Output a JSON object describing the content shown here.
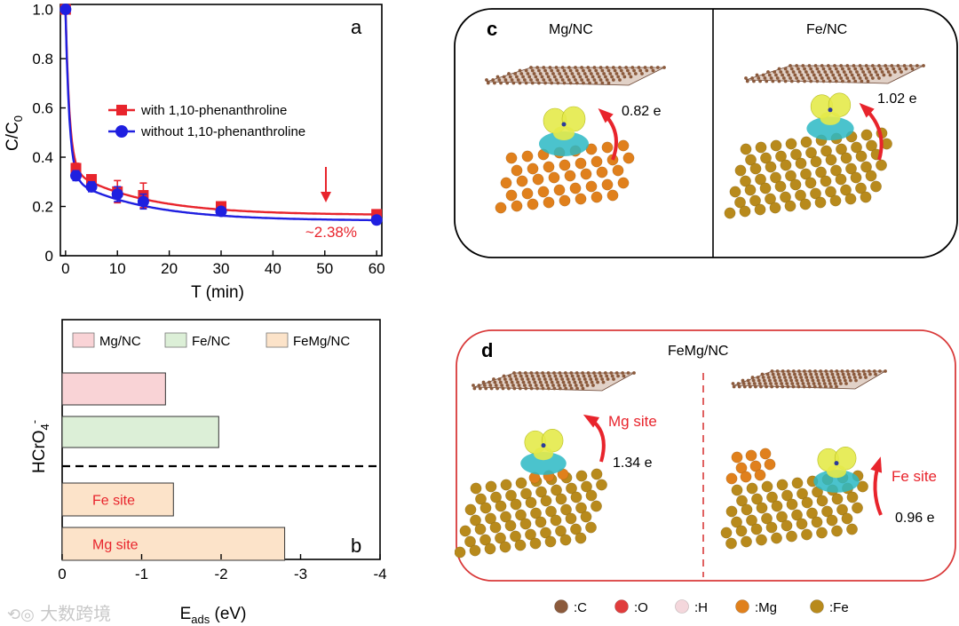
{
  "panel_a": {
    "label": "a",
    "annotation": "~2.38%",
    "chart_data": {
      "type": "line",
      "xlabel": "T (min)",
      "ylabel": "C/C0",
      "xlim": [
        -1,
        61
      ],
      "ylim": [
        0,
        1.02
      ],
      "xticks": [
        "0",
        "10",
        "20",
        "30",
        "40",
        "50",
        "60"
      ],
      "yticks": [
        "0",
        "0.2",
        "0.4",
        "0.6",
        "0.8",
        "1.0"
      ],
      "series": [
        {
          "name": "with 1,10-phenanthroline",
          "color": "#e8242c",
          "marker": "square",
          "x": [
            0,
            2,
            5,
            10,
            15,
            30,
            60
          ],
          "y": [
            1.0,
            0.355,
            0.31,
            0.26,
            0.245,
            0.2,
            0.168
          ],
          "err": [
            0,
            0.02,
            0.015,
            0.045,
            0.05,
            0.01,
            0.01
          ]
        },
        {
          "name": "without 1,10-phenanthroline",
          "color": "#1f1fe0",
          "marker": "circle",
          "x": [
            0,
            2,
            5,
            10,
            15,
            30,
            60
          ],
          "y": [
            1.0,
            0.325,
            0.28,
            0.25,
            0.22,
            0.18,
            0.145
          ],
          "err": [
            0,
            0.02,
            0.02,
            0.03,
            0.03,
            0.01,
            0.01
          ]
        }
      ],
      "legend": "center-right"
    }
  },
  "panel_b": {
    "label": "b",
    "ylabel": "HCrO4-",
    "chart_data": {
      "type": "bar",
      "orientation": "horizontal",
      "xlabel": "Eads (eV)",
      "xlim": [
        0,
        -4
      ],
      "xticks": [
        "0",
        "-1",
        "-2",
        "-3",
        "-4"
      ],
      "legend": [
        "Mg/NC",
        "Fe/NC",
        "FeMg/NC"
      ],
      "bars": [
        {
          "label": "",
          "group": "Mg/NC",
          "value": -1.3,
          "color": "#f9d3d6"
        },
        {
          "label": "",
          "group": "Fe/NC",
          "value": -1.97,
          "color": "#dcefd7"
        },
        {
          "label": "Fe site",
          "group": "FeMg/NC",
          "value": -1.4,
          "color": "#fce3c9"
        },
        {
          "label": "Mg site",
          "group": "FeMg/NC",
          "value": -2.8,
          "color": "#fce3c9"
        }
      ]
    }
  },
  "panel_c": {
    "label": "c",
    "left_title": "Mg/NC",
    "right_title": "Fe/NC",
    "left_charge": "0.82 e",
    "right_charge": "1.02 e"
  },
  "panel_d": {
    "label": "d",
    "title": "FeMg/NC",
    "left_site": "Mg site",
    "left_charge": "1.34 e",
    "right_site": "Fe site",
    "right_charge": "0.96 e"
  },
  "atom_legend": [
    {
      "label": ":C",
      "color": "#8b5a3c"
    },
    {
      "label": ":O",
      "color": "#e03c3c"
    },
    {
      "label": ":H",
      "color": "#f4d7dc"
    },
    {
      "label": ":Mg",
      "color": "#e0801c"
    },
    {
      "label": ":Fe",
      "color": "#b88a1c"
    }
  ],
  "watermark": "大数跨境",
  "colors": {
    "red": "#e8242c",
    "blue": "#1f1fe0",
    "frame_red": "#d93a3a"
  }
}
